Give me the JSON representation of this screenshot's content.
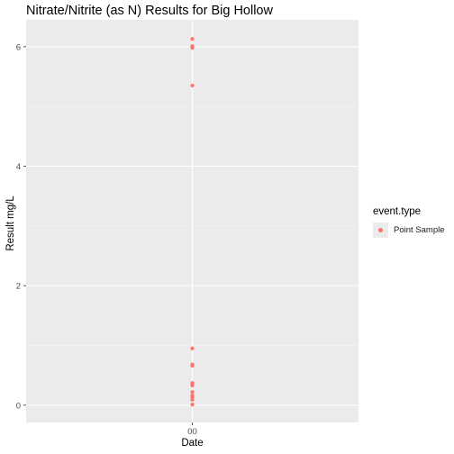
{
  "chart_data": {
    "type": "scatter",
    "title": "Nitrate/Nitrite (as N) Results for Big Hollow",
    "xlabel": "Date",
    "ylabel": "Result mg/L",
    "x_ticks": [
      "00"
    ],
    "y_ticks": [
      0,
      2,
      4,
      6
    ],
    "ylim": [
      -0.29,
      6.45
    ],
    "grid": true,
    "legend": {
      "title": "event.type",
      "position": "right",
      "entries": [
        "Point Sample"
      ]
    },
    "series": [
      {
        "name": "Point Sample",
        "color": "#f8766d",
        "x": [
          "00",
          "00",
          "00",
          "00",
          "00",
          "00",
          "00",
          "00",
          "00",
          "00",
          "00",
          "00",
          "00",
          "00"
        ],
        "y": [
          6.13,
          6.01,
          5.98,
          5.35,
          0.95,
          0.68,
          0.66,
          0.37,
          0.33,
          0.22,
          0.16,
          0.13,
          0.09,
          0.01
        ]
      }
    ]
  }
}
